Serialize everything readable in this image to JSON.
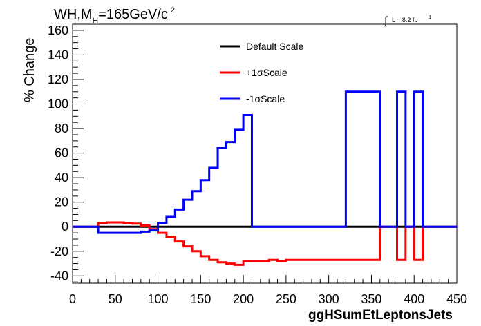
{
  "chart_data": {
    "type": "line",
    "title": {
      "main": "WH,M",
      "sub": "H",
      "rest": "=165GeV/c",
      "sup": "2"
    },
    "lumi": {
      "integral": "∫",
      "text": "L = 8.2 fb",
      "sup": "-1"
    },
    "xlabel": "ggHSumEtLeptonsJets",
    "ylabel": "% Change",
    "xlim": [
      0,
      450
    ],
    "ylim": [
      -46,
      165
    ],
    "xticks": [
      0,
      50,
      100,
      150,
      200,
      250,
      300,
      350,
      400,
      450
    ],
    "yticks": [
      -40,
      -20,
      0,
      20,
      40,
      60,
      80,
      100,
      120,
      140,
      160
    ],
    "grid": false,
    "legend_position": "top-center",
    "bin_edges": [
      0,
      10,
      20,
      30,
      40,
      50,
      60,
      70,
      80,
      90,
      100,
      110,
      120,
      130,
      140,
      150,
      160,
      170,
      180,
      190,
      200,
      210,
      220,
      230,
      240,
      250,
      260,
      270,
      280,
      290,
      300,
      310,
      320,
      330,
      340,
      350,
      360,
      370,
      380,
      390,
      400,
      410,
      420,
      430,
      440,
      450
    ],
    "series": [
      {
        "name": "Default Scale",
        "color": "#000000",
        "values": [
          0,
          0,
          0,
          0,
          0,
          0,
          0,
          0,
          0,
          0,
          0,
          0,
          0,
          0,
          0,
          0,
          0,
          0,
          0,
          0,
          0,
          0,
          0,
          0,
          0,
          0,
          0,
          0,
          0,
          0,
          0,
          0,
          0,
          0,
          0,
          0,
          0,
          0,
          0,
          0,
          0,
          0,
          0,
          0,
          0
        ]
      },
      {
        "name": "+1σScale",
        "color": "#ff0000",
        "values": [
          0,
          0,
          0,
          3,
          3.5,
          3.5,
          3,
          2.5,
          1,
          -2,
          -5,
          -8,
          -12,
          -16,
          -20,
          -24,
          -27,
          -29,
          -30,
          -31,
          -28,
          -28,
          -28,
          -27,
          -28,
          -27,
          -27,
          -27,
          -27,
          -27,
          -27,
          -27,
          -27,
          -27,
          -27,
          -27,
          0,
          0,
          -27,
          0,
          -27,
          0,
          0,
          0,
          0
        ]
      },
      {
        "name": "-1σScale",
        "color": "#0000ff",
        "values": [
          0,
          0,
          0,
          -5,
          -5,
          -5,
          -5,
          -5,
          -4,
          -3,
          3,
          8,
          14,
          22,
          29,
          38,
          48,
          64,
          69,
          79,
          91,
          0,
          0,
          0,
          0,
          0,
          0,
          0,
          0,
          0,
          0,
          0,
          110,
          110,
          110,
          110,
          0,
          0,
          110,
          0,
          110,
          0,
          0,
          0,
          0
        ]
      }
    ]
  }
}
